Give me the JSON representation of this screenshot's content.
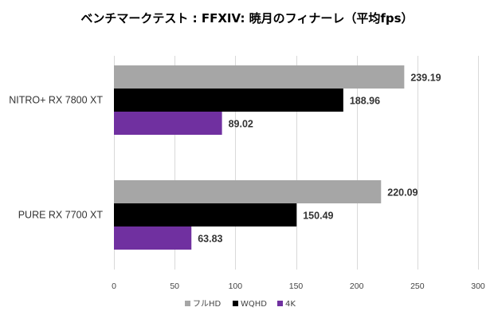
{
  "chart_data": {
    "type": "bar",
    "orientation": "horizontal",
    "title": "ベンチマークテスト : FFXIV: 暁月のフィナーレ（平均fps）",
    "categories": [
      "NITRO+ RX 7800 XT",
      "PURE RX 7700 XT"
    ],
    "series": [
      {
        "name": "フルHD",
        "color": "#a6a6a6",
        "values": [
          239.19,
          220.09
        ]
      },
      {
        "name": "WQHD",
        "color": "#000000",
        "values": [
          188.96,
          150.49
        ]
      },
      {
        "name": "4K",
        "color": "#7030a0",
        "values": [
          89.02,
          63.83
        ]
      }
    ],
    "value_labels": [
      [
        "239.19",
        "220.09"
      ],
      [
        "188.96",
        "150.49"
      ],
      [
        "89.02",
        "63.83"
      ]
    ],
    "xlim": [
      0,
      300
    ],
    "ticks": [
      0,
      50,
      100,
      150,
      200,
      250,
      300
    ],
    "xlabel": "",
    "ylabel": "",
    "grid": "vertical",
    "legend_position": "bottom"
  }
}
